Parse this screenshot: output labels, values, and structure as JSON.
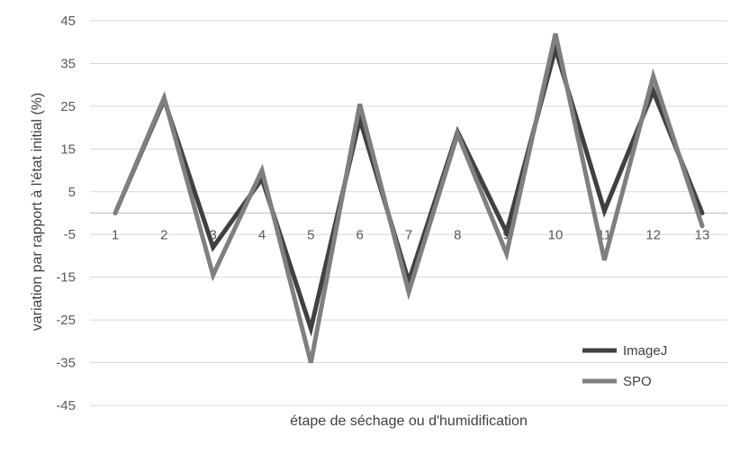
{
  "chart_data": {
    "type": "line",
    "title": "",
    "xlabel": "étape de séchage ou d'humidification",
    "ylabel": "variation par rapport à l'état initial (%)",
    "categories": [
      "1",
      "2",
      "3",
      "4",
      "5",
      "6",
      "7",
      "8",
      "9",
      "10",
      "11",
      "12",
      "13"
    ],
    "ylim": [
      -45,
      45
    ],
    "yticks": [
      45,
      35,
      25,
      15,
      5,
      -5,
      -15,
      -25,
      -35,
      -45
    ],
    "grid": true,
    "legend_position": "bottom-right",
    "series": [
      {
        "name": "ImageJ",
        "color": "#404040",
        "values": [
          0,
          26.5,
          -8,
          8,
          -27,
          22,
          -16,
          19,
          -4.5,
          38.5,
          0.5,
          28.5,
          0
        ]
      },
      {
        "name": "SPO",
        "color": "#7f7f7f",
        "values": [
          0,
          27,
          -14.5,
          10,
          -35,
          25.5,
          -18.5,
          18.5,
          -9.5,
          42,
          -11,
          32,
          -3
        ]
      }
    ]
  }
}
